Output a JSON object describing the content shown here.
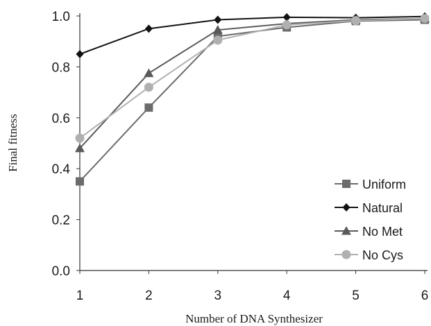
{
  "chart_data": {
    "type": "line",
    "title": "",
    "xlabel": "Number of DNA Synthesizer",
    "ylabel": "Final fitness",
    "x": [
      1,
      2,
      3,
      4,
      5,
      6
    ],
    "xlim": [
      1,
      6
    ],
    "ylim": [
      0,
      1
    ],
    "yticks": [
      "0.0",
      "0.2",
      "0.4",
      "0.6",
      "0.8",
      "1.0"
    ],
    "xticks": [
      "1",
      "2",
      "3",
      "4",
      "5",
      "6"
    ],
    "grid": false,
    "legend_position": "bottom-right",
    "series": [
      {
        "name": "Uniform",
        "marker": "square",
        "color": "#6b6b6b",
        "values": [
          0.35,
          0.64,
          0.92,
          0.955,
          0.98,
          0.985
        ]
      },
      {
        "name": "Natural",
        "marker": "diamond",
        "color": "#111111",
        "values": [
          0.85,
          0.95,
          0.985,
          0.995,
          0.993,
          0.998
        ]
      },
      {
        "name": "No Met",
        "marker": "triangle",
        "color": "#5a5a5a",
        "values": [
          0.48,
          0.775,
          0.945,
          0.97,
          0.985,
          0.99
        ]
      },
      {
        "name": "No Cys",
        "marker": "circle",
        "color": "#b0b0b0",
        "values": [
          0.52,
          0.72,
          0.905,
          0.965,
          0.982,
          0.99
        ]
      }
    ]
  }
}
